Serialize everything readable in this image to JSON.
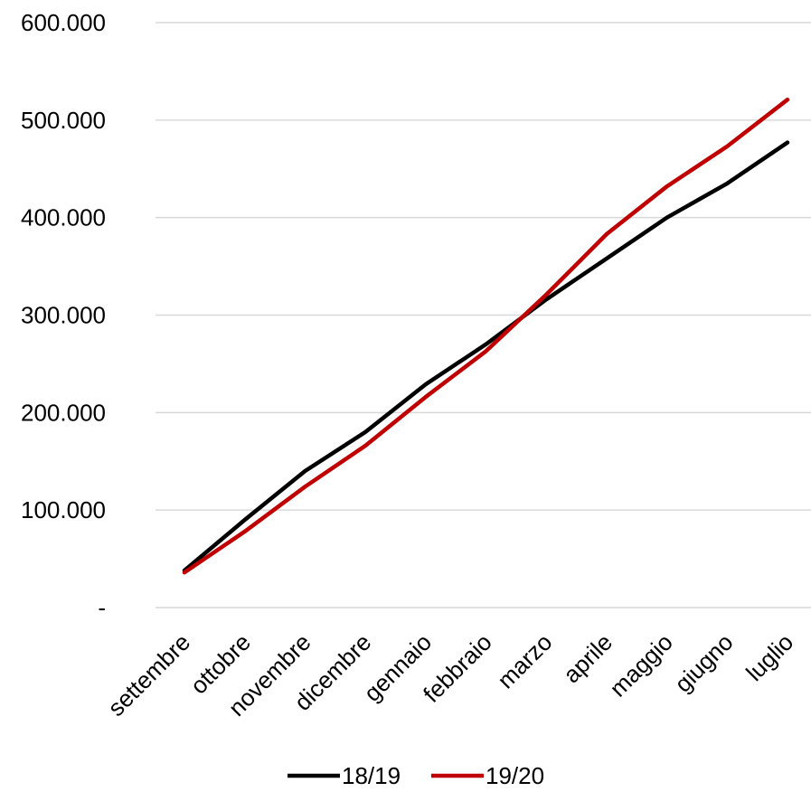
{
  "chart_data": {
    "type": "line",
    "categories": [
      "settembre",
      "ottobre",
      "novembre",
      "dicembre",
      "gennaio",
      "febbraio",
      "marzo",
      "aprile",
      "maggio",
      "giugno",
      "luglio"
    ],
    "series": [
      {
        "name": "18/19",
        "color": "#000000",
        "values": [
          38000,
          90000,
          140000,
          180000,
          229000,
          270000,
          316000,
          358000,
          400000,
          435000,
          477000
        ]
      },
      {
        "name": "19/20",
        "color": "#C00000",
        "values": [
          36000,
          78000,
          124000,
          166000,
          216000,
          263000,
          321000,
          383000,
          432000,
          473000,
          521000
        ]
      }
    ],
    "yticks": [
      {
        "value": 0,
        "label": "-"
      },
      {
        "value": 100000,
        "label": "100.000"
      },
      {
        "value": 200000,
        "label": "200.000"
      },
      {
        "value": 300000,
        "label": "300.000"
      },
      {
        "value": 400000,
        "label": "400.000"
      },
      {
        "value": 500000,
        "label": "500.000"
      },
      {
        "value": 600000,
        "label": "600.000"
      }
    ],
    "ylim": [
      0,
      600000
    ],
    "grid": true,
    "legend_position": "bottom",
    "title": "",
    "xlabel": "",
    "ylabel": ""
  }
}
